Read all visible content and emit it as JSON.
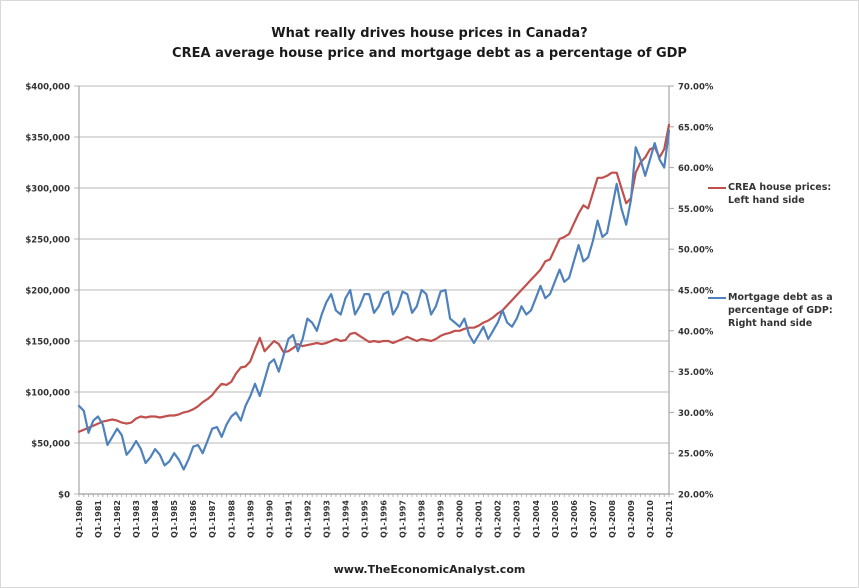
{
  "source": "www.TheEconomicAnalyst.com",
  "chart_data": {
    "type": "line",
    "title": "What really drives house prices in Canada?",
    "subtitle": "CREA average house price and mortgage debt as a percentage of GDP",
    "xlabel": "",
    "ylabel": "",
    "y2label": "",
    "grid": true,
    "legend_position": "right",
    "colors": {
      "house": "#c0504d",
      "mortgage": "#4f81bd",
      "grid": "#c8c8c8",
      "axis": "#a6a6a6"
    },
    "x_tick_labels": [
      "Q1-1980",
      "Q1-1981",
      "Q1-1982",
      "Q1-1983",
      "Q1-1984",
      "Q1-1985",
      "Q1-1986",
      "Q1-1987",
      "Q1-1988",
      "Q1-1989",
      "Q1-1990",
      "Q1-1991",
      "Q1-1992",
      "Q1-1993",
      "Q1-1994",
      "Q1-1995",
      "Q1-1996",
      "Q1-1997",
      "Q1-1998",
      "Q1-1999",
      "Q1-2000",
      "Q1-2001",
      "Q1-2002",
      "Q1-2003",
      "Q1-2004",
      "Q1-2005",
      "Q1-2006",
      "Q1-2007",
      "Q1-2008",
      "Q1-2009",
      "Q1-2010",
      "Q1-2011"
    ],
    "x_start": "Q1-1980",
    "x_end": "Q1-2011",
    "frequency": "quarterly",
    "y_left": {
      "min": 0,
      "max": 400000,
      "step": 50000,
      "tick_labels": [
        "$0",
        "$50,000",
        "$100,000",
        "$150,000",
        "$200,000",
        "$250,000",
        "$300,000",
        "$350,000",
        "$400,000"
      ]
    },
    "y_right": {
      "min": 20,
      "max": 70,
      "step": 5,
      "tick_labels": [
        "20.00%",
        "25.00%",
        "30.00%",
        "35.00%",
        "40.00%",
        "45.00%",
        "50.00%",
        "55.00%",
        "60.00%",
        "65.00%",
        "70.00%"
      ]
    },
    "series": [
      {
        "name": "CREA house prices: Left hand side",
        "axis": "left",
        "units": "CAD",
        "values": [
          61000,
          63000,
          65000,
          67000,
          69000,
          71000,
          72000,
          73000,
          72000,
          70000,
          69000,
          70000,
          74000,
          76000,
          75000,
          76000,
          76000,
          75000,
          76000,
          77000,
          77000,
          78000,
          80000,
          81000,
          83000,
          86000,
          90000,
          93000,
          97000,
          103000,
          108000,
          107000,
          110000,
          118000,
          124000,
          125000,
          130000,
          142000,
          153000,
          140000,
          145000,
          150000,
          147000,
          139000,
          140000,
          143000,
          147000,
          145000,
          146000,
          147000,
          148000,
          147000,
          148000,
          150000,
          152000,
          150000,
          151000,
          157000,
          158000,
          155000,
          152000,
          149000,
          150000,
          149000,
          150000,
          150000,
          148000,
          150000,
          152000,
          154000,
          152000,
          150000,
          152000,
          151000,
          150000,
          152000,
          155000,
          157000,
          158000,
          160000,
          160000,
          162000,
          163000,
          163000,
          165000,
          168000,
          170000,
          173000,
          177000,
          180000,
          185000,
          190000,
          195000,
          200000,
          205000,
          210000,
          215000,
          220000,
          228000,
          230000,
          240000,
          250000,
          252000,
          255000,
          265000,
          275000,
          283000,
          280000,
          295000,
          310000,
          310000,
          312000,
          315000,
          315000,
          300000,
          285000,
          290000,
          315000,
          325000,
          330000,
          338000,
          340000,
          330000,
          338000,
          362000
        ]
      },
      {
        "name": "Mortgage debt as a percentage of GDP: Right hand side",
        "axis": "right",
        "units": "percent",
        "values": [
          30.8,
          30.2,
          27.5,
          29.0,
          29.5,
          28.5,
          26.0,
          27.0,
          28.0,
          27.2,
          24.8,
          25.5,
          26.5,
          25.5,
          23.8,
          24.5,
          25.5,
          24.8,
          23.5,
          24.0,
          25.0,
          24.2,
          23.0,
          24.2,
          25.8,
          26.0,
          25.0,
          26.5,
          28.0,
          28.2,
          27.0,
          28.5,
          29.5,
          30.0,
          29.0,
          30.8,
          32.0,
          33.5,
          32.0,
          34.0,
          36.0,
          36.5,
          35.0,
          37.0,
          39.0,
          39.5,
          37.5,
          39.0,
          41.5,
          41.0,
          40.0,
          42.0,
          43.5,
          44.5,
          42.5,
          42.0,
          44.0,
          45.0,
          42.0,
          43.0,
          44.5,
          44.5,
          42.2,
          43.0,
          44.5,
          44.8,
          42.0,
          43.0,
          44.8,
          44.5,
          42.2,
          43.0,
          45.0,
          44.5,
          42.0,
          43.0,
          44.8,
          45.0,
          41.5,
          41.0,
          40.5,
          41.5,
          39.5,
          38.5,
          39.5,
          40.5,
          39.0,
          40.0,
          41.0,
          42.5,
          41.0,
          40.5,
          41.5,
          43.0,
          42.0,
          42.5,
          44.0,
          45.5,
          44.0,
          44.5,
          46.0,
          47.5,
          46.0,
          46.5,
          48.5,
          50.5,
          48.5,
          49.0,
          51.0,
          53.5,
          51.5,
          52.0,
          55.0,
          58.0,
          55.0,
          53.0,
          56.0,
          62.5,
          61.0,
          59.0,
          61.0,
          63.0,
          61.0,
          60.0,
          64.5
        ]
      }
    ],
    "legend": [
      {
        "label": "CREA house prices: Left hand side",
        "series": 0
      },
      {
        "label": "Mortgage debt as a percentage of GDP: Right hand side",
        "series": 1
      }
    ]
  }
}
